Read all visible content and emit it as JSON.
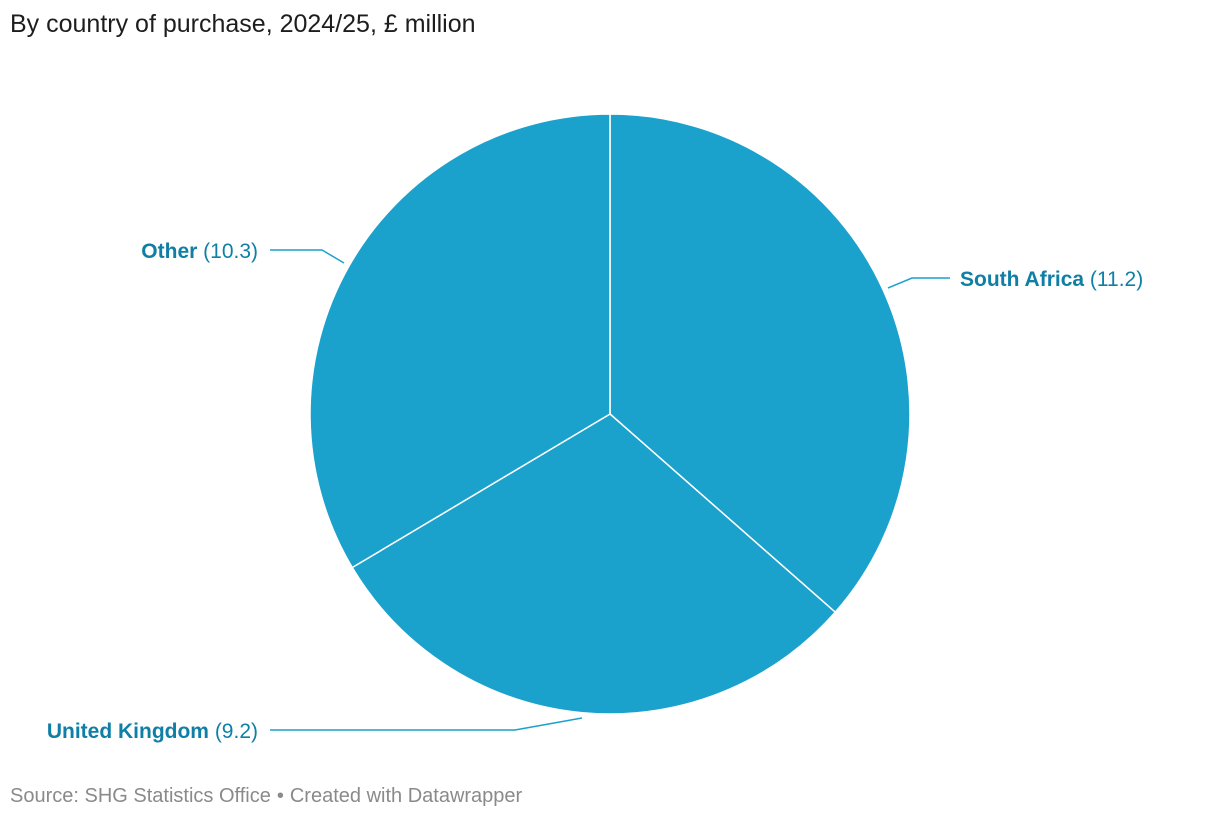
{
  "chart_data": {
    "type": "pie",
    "title": "By country of purchase, 2024/25, £ million",
    "slices": [
      {
        "label": "South Africa",
        "value": 11.2,
        "value_text": "(11.2)"
      },
      {
        "label": "United Kingdom",
        "value": 9.2,
        "value_text": "(9.2)"
      },
      {
        "label": "Other",
        "value": 10.3,
        "value_text": "(10.3)"
      }
    ],
    "colors": {
      "slice": "#1aa1cc",
      "label": "#0f7fa6",
      "separator": "#ffffff"
    }
  },
  "footer": {
    "source": "Source: SHG Statistics Office",
    "separator": "•",
    "credit": "Created with Datawrapper"
  }
}
